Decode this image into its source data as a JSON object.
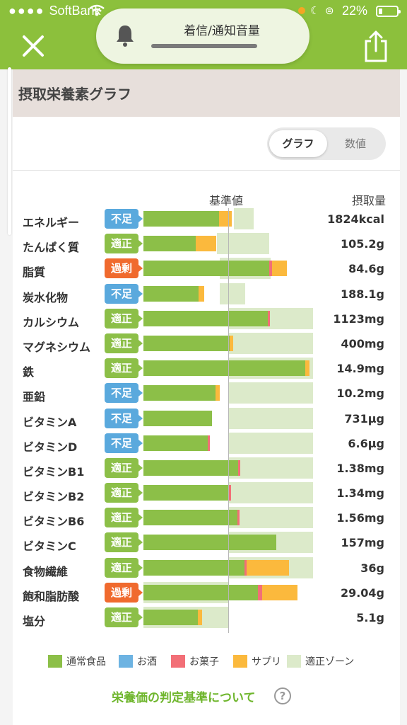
{
  "status_bar": {
    "carrier": "SoftBank",
    "battery": "22%"
  },
  "volume_hud": {
    "label": "着信/通知音量"
  },
  "header": {
    "title": "摂取栄養素グラフ"
  },
  "toggle": {
    "graph_label": "グラフ",
    "number_label": "数値"
  },
  "columns": {
    "reference_label": "基準値",
    "intake_label": "摂取量"
  },
  "colors": {
    "food": "#8cbf48",
    "alcohol": "#6db3e2",
    "sweets": "#f26f77",
    "supplement": "#fbb93d",
    "zone": "#dceaca",
    "badge_short": "#5aa9dd",
    "badge_ok": "#8cbf48",
    "badge_over": "#f06a2e"
  },
  "nutrients": [
    {
      "name": "エネルギー",
      "status": "不足",
      "value": "1824kcal",
      "food": 0.89,
      "alcohol": 0,
      "sweets": 0,
      "supplement": 0.15,
      "zone_from": 1.07,
      "zone_to": 1.3
    },
    {
      "name": "たんぱく質",
      "status": "適正",
      "value": "105.2g",
      "food": 0.62,
      "alcohol": 0,
      "sweets": 0,
      "supplement": 0.24,
      "zone_from": 0.87,
      "zone_to": 1.48
    },
    {
      "name": "脂質",
      "status": "過剰",
      "value": "84.6g",
      "food": 1.48,
      "alcohol": 0,
      "sweets": 0.04,
      "supplement": 0.17,
      "zone_from": 0.9,
      "zone_to": 1.5
    },
    {
      "name": "炭水化物",
      "status": "不足",
      "value": "188.1g",
      "food": 0.65,
      "alcohol": 0,
      "sweets": 0,
      "supplement": 0.07,
      "zone_from": 0.9,
      "zone_to": 1.2
    },
    {
      "name": "カルシウム",
      "status": "適正",
      "value": "1123mg",
      "food": 1.47,
      "alcohol": 0,
      "sweets": 0.02,
      "supplement": 0,
      "zone_from": 1.0,
      "zone_to": 2.0
    },
    {
      "name": "マグネシウム",
      "status": "適正",
      "value": "400mg",
      "food": 1.02,
      "alcohol": 0,
      "sweets": 0,
      "supplement": 0.04,
      "zone_from": 1.0,
      "zone_to": 2.0
    },
    {
      "name": "鉄",
      "status": "適正",
      "value": "14.9mg",
      "food": 1.91,
      "alcohol": 0,
      "sweets": 0,
      "supplement": 0.05,
      "zone_from": 1.0,
      "zone_to": 2.0
    },
    {
      "name": "亜鉛",
      "status": "不足",
      "value": "10.2mg",
      "food": 0.85,
      "alcohol": 0,
      "sweets": 0,
      "supplement": 0.05,
      "zone_from": 1.0,
      "zone_to": 2.0
    },
    {
      "name": "ビタミンA",
      "status": "不足",
      "value": "731µg",
      "food": 0.81,
      "alcohol": 0,
      "sweets": 0,
      "supplement": 0,
      "zone_from": 1.0,
      "zone_to": 2.0
    },
    {
      "name": "ビタミンD",
      "status": "不足",
      "value": "6.6µg",
      "food": 0.76,
      "alcohol": 0,
      "sweets": 0.02,
      "supplement": 0,
      "zone_from": 1.0,
      "zone_to": 2.0
    },
    {
      "name": "ビタミンB1",
      "status": "適正",
      "value": "1.38mg",
      "food": 1.12,
      "alcohol": 0,
      "sweets": 0.02,
      "supplement": 0,
      "zone_from": 1.0,
      "zone_to": 2.0
    },
    {
      "name": "ビタミンB2",
      "status": "適正",
      "value": "1.34mg",
      "food": 1.0,
      "alcohol": 0,
      "sweets": 0.03,
      "supplement": 0,
      "zone_from": 1.0,
      "zone_to": 2.0
    },
    {
      "name": "ビタミンB6",
      "status": "適正",
      "value": "1.56mg",
      "food": 1.11,
      "alcohol": 0,
      "sweets": 0.02,
      "supplement": 0,
      "zone_from": 1.0,
      "zone_to": 2.0
    },
    {
      "name": "ビタミンC",
      "status": "適正",
      "value": "157mg",
      "food": 1.57,
      "alcohol": 0,
      "sweets": 0,
      "supplement": 0,
      "zone_from": 1.0,
      "zone_to": 2.0
    },
    {
      "name": "食物繊維",
      "status": "適正",
      "value": "36g",
      "food": 1.19,
      "alcohol": 0,
      "sweets": 0.03,
      "supplement": 0.5,
      "zone_from": 1.0,
      "zone_to": 2.0
    },
    {
      "name": "飽和脂肪酸",
      "status": "過剰",
      "value": "29.04g",
      "food": 1.35,
      "alcohol": 0,
      "sweets": 0.05,
      "supplement": 0.42,
      "zone_from": 0.0,
      "zone_to": 1.0
    },
    {
      "name": "塩分",
      "status": "適正",
      "value": "5.1g",
      "food": 0.64,
      "alcohol": 0,
      "sweets": 0,
      "supplement": 0.05,
      "zone_from": 0.0,
      "zone_to": 1.0
    }
  ],
  "legend": [
    {
      "label": "通常食品",
      "color": "#8cbf48"
    },
    {
      "label": "お酒",
      "color": "#6db3e2"
    },
    {
      "label": "お菓子",
      "color": "#f26f77"
    },
    {
      "label": "サプリ",
      "color": "#fbb93d"
    },
    {
      "label": "適正ゾーン",
      "color": "#dceaca"
    }
  ],
  "footer_link": {
    "label": "栄養価の判定基準について",
    "help": "?"
  }
}
